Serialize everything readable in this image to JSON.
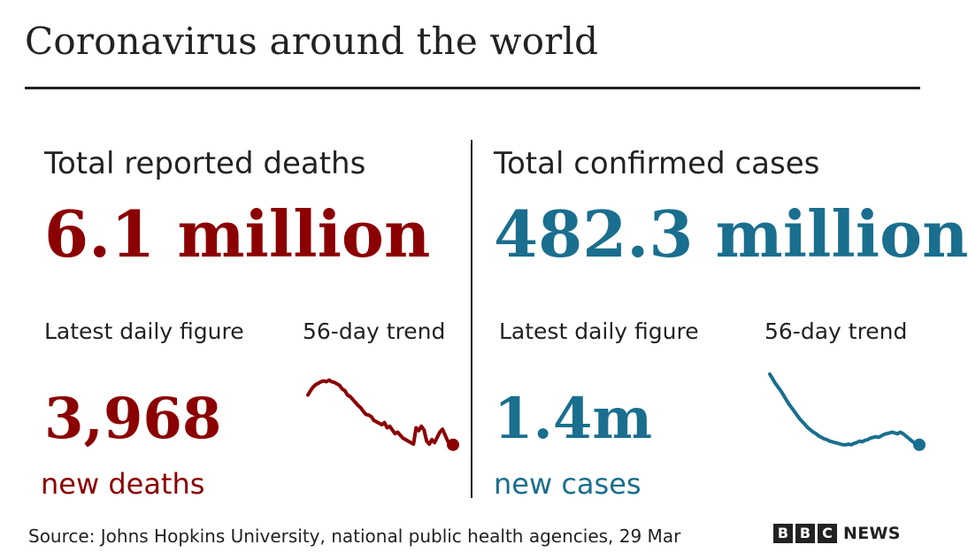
{
  "title": "Coronavirus around the world",
  "colors": {
    "deaths": "#8b0000",
    "cases": "#1a6e8e",
    "text": "#222222"
  },
  "deaths": {
    "heading": "Total reported deaths",
    "total": "6.1 million",
    "daily_label": "Latest daily figure",
    "trend_label": "56-day trend",
    "daily_value": "3,968",
    "daily_unit": "new deaths"
  },
  "cases": {
    "heading": "Total confirmed cases",
    "total": "482.3 million",
    "daily_label": "Latest daily figure",
    "trend_label": "56-day trend",
    "daily_value": "1.4m",
    "daily_unit": "new cases"
  },
  "footer": {
    "source": "Source: Johns Hopkins University, national public health agencies, 29 Mar",
    "logo_letters": [
      "B",
      "B",
      "C"
    ],
    "logo_word": "NEWS"
  },
  "chart_data": [
    {
      "type": "line",
      "title": "56-day trend",
      "series": [
        {
          "color": "#8b0000",
          "values": [
            0.72,
            0.78,
            0.83,
            0.86,
            0.88,
            0.9,
            0.91,
            0.9,
            0.92,
            0.9,
            0.89,
            0.87,
            0.85,
            0.8,
            0.78,
            0.72,
            0.7,
            0.66,
            0.62,
            0.58,
            0.55,
            0.5,
            0.46,
            0.45,
            0.43,
            0.38,
            0.36,
            0.34,
            0.32,
            0.35,
            0.28,
            0.3,
            0.25,
            0.2,
            0.22,
            0.18,
            0.14,
            0.12,
            0.1,
            0.08,
            0.06,
            0.28,
            0.24,
            0.3,
            0.25,
            0.1,
            0.06,
            0.12,
            0.08,
            0.15,
            0.22,
            0.26,
            0.18,
            0.1,
            0.06,
            0.05
          ]
        }
      ]
    },
    {
      "type": "line",
      "title": "56-day trend",
      "series": [
        {
          "color": "#1a6e8e",
          "values": [
            1.0,
            0.94,
            0.88,
            0.83,
            0.78,
            0.72,
            0.66,
            0.6,
            0.55,
            0.5,
            0.45,
            0.4,
            0.36,
            0.32,
            0.28,
            0.25,
            0.22,
            0.2,
            0.17,
            0.15,
            0.13,
            0.12,
            0.1,
            0.09,
            0.08,
            0.07,
            0.06,
            0.05,
            0.05,
            0.06,
            0.05,
            0.07,
            0.08,
            0.1,
            0.09,
            0.11,
            0.12,
            0.14,
            0.15,
            0.16,
            0.15,
            0.17,
            0.19,
            0.2,
            0.21,
            0.22,
            0.21,
            0.2,
            0.22,
            0.2,
            0.17,
            0.14,
            0.11,
            0.08,
            0.06,
            0.05
          ]
        }
      ]
    }
  ]
}
